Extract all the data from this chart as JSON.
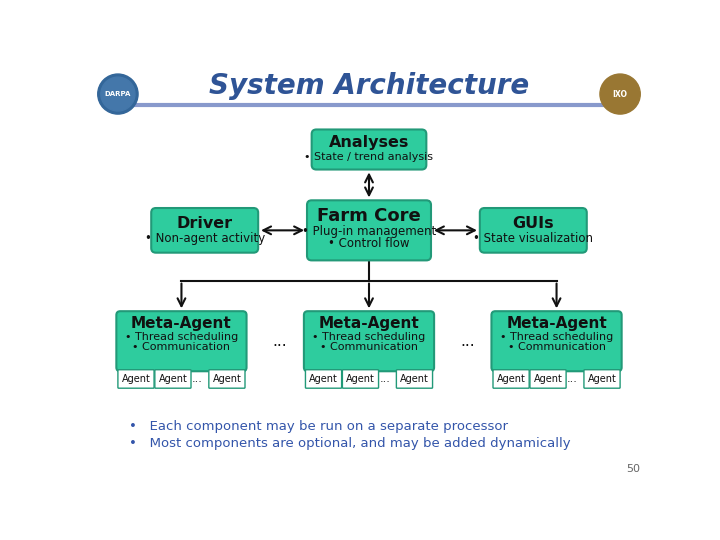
{
  "title": "System Architecture",
  "title_color": "#2F5496",
  "title_fontsize": 20,
  "bg_color": "#FFFFFF",
  "box_color": "#2ECC9E",
  "box_edge_color": "#229978",
  "box_text_color": "#111111",
  "line_color": "#111111",
  "header_line_color": "#8899CC",
  "bullet": "•",
  "analyses_title": "Analyses",
  "analyses_sub": "State / trend analysis",
  "farm_title": "Farm Core",
  "farm_sub1": "Plug-in management",
  "farm_sub2": "Control flow",
  "driver_title": "Driver",
  "driver_sub": "Non-agent activity",
  "guis_title": "GUIs",
  "guis_sub": "State visualization",
  "meta_title": "Meta-Agent",
  "meta_sub1": "Thread scheduling",
  "meta_sub2": "Communication",
  "agent_label": "Agent",
  "dots": "...",
  "bullet1": "Each component may be run on a separate processor",
  "bullet2": "Most components are optional, and may be added dynamically",
  "footer_num": "50",
  "footer_color": "#666666",
  "bullet_text_color": "#3355AA"
}
